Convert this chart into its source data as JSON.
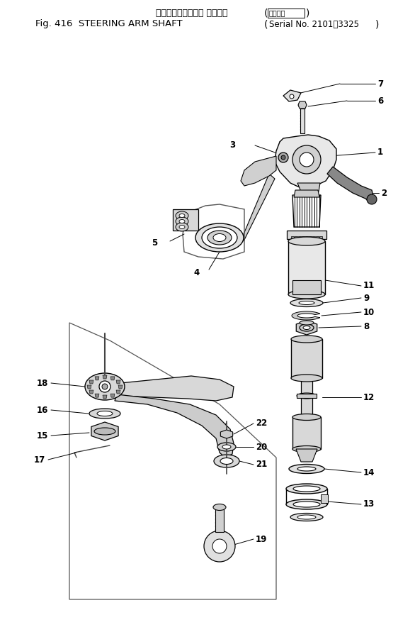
{
  "title_jp": "ステアリングアーム シャフト",
  "title_badge": "適用号機",
  "title_en": "Fig. 416  STEERING ARM SHAFT",
  "title_serial": "Serial No. 2101～3325",
  "bg_color": "#ffffff",
  "line_color": "#000000",
  "fig_width": 5.86,
  "fig_height": 8.98,
  "dpi": 100
}
